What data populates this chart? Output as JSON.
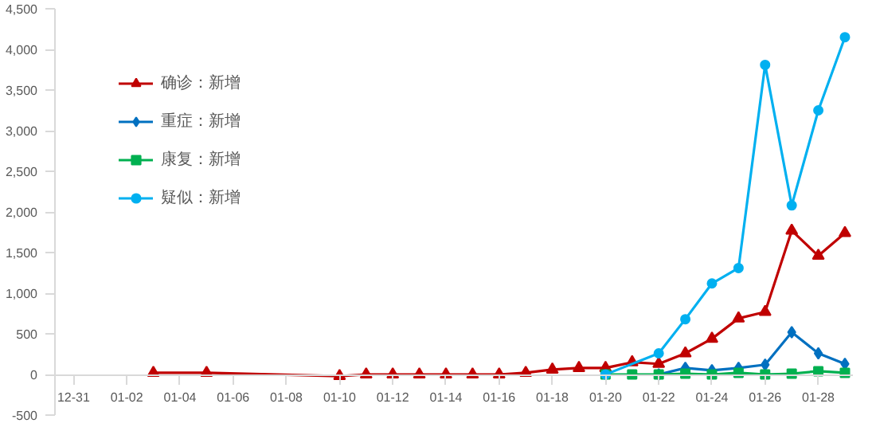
{
  "chart_data": {
    "type": "line",
    "categories": [
      "12-31",
      null,
      "01-02",
      null,
      "01-04",
      null,
      "01-06",
      null,
      "01-08",
      null,
      "01-10",
      null,
      "01-12",
      null,
      "01-14",
      null,
      "01-16",
      null,
      "01-18",
      null,
      "01-20",
      null,
      "01-22",
      null,
      "01-24",
      null,
      "01-26",
      null,
      "01-28",
      null
    ],
    "series": [
      {
        "name": "确诊：新增",
        "color": "#c00000",
        "marker": "triangle",
        "values": [
          null,
          null,
          null,
          20,
          null,
          20,
          null,
          null,
          null,
          null,
          -20,
          0,
          0,
          0,
          0,
          0,
          0,
          20,
          60,
          80,
          80,
          150,
          130,
          260,
          440,
          690,
          770,
          1770,
          1460,
          1740
        ]
      },
      {
        "name": "重症：新增",
        "color": "#0070c0",
        "marker": "diamond",
        "values": [
          null,
          null,
          null,
          null,
          null,
          null,
          null,
          null,
          null,
          null,
          null,
          null,
          null,
          null,
          null,
          null,
          null,
          null,
          null,
          null,
          null,
          null,
          0,
          80,
          50,
          80,
          120,
          520,
          260,
          130
        ]
      },
      {
        "name": "康复：新增",
        "color": "#00b050",
        "marker": "square",
        "values": [
          null,
          null,
          null,
          null,
          null,
          null,
          null,
          null,
          null,
          null,
          null,
          null,
          null,
          null,
          null,
          null,
          null,
          null,
          null,
          null,
          0,
          0,
          0,
          10,
          0,
          20,
          0,
          10,
          40,
          20
        ]
      },
      {
        "name": "疑似：新增",
        "color": "#00b0f0",
        "marker": "circle",
        "values": [
          null,
          null,
          null,
          null,
          null,
          null,
          null,
          null,
          null,
          null,
          null,
          null,
          null,
          null,
          null,
          null,
          null,
          null,
          null,
          null,
          0,
          null,
          260,
          680,
          1120,
          1310,
          3810,
          2080,
          3250,
          4150
        ]
      }
    ],
    "ylim": [
      -500,
      4500
    ],
    "yticks": [
      -500,
      0,
      500,
      {
        "value": 1000,
        "label": "1,000"
      },
      {
        "value": 1500,
        "label": "1,500"
      },
      {
        "value": 2000,
        "label": "2,000"
      },
      {
        "value": 2500,
        "label": "2,500"
      },
      {
        "value": 3000,
        "label": "3,000"
      },
      {
        "value": 3500,
        "label": "3,500"
      },
      {
        "value": 4000,
        "label": "4,000"
      },
      {
        "value": 4500,
        "label": "4,500"
      }
    ],
    "grid": false,
    "legend": "top left",
    "line_style": "solid"
  }
}
